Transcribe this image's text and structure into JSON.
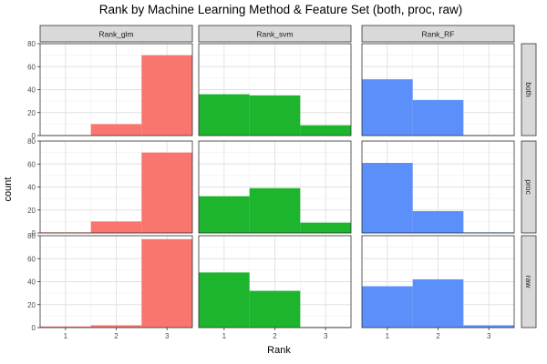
{
  "chart_data": {
    "type": "bar",
    "title": "Rank by Machine Learning Method & Feature Set (both, proc, raw)",
    "xlabel": "Rank",
    "ylabel": "count",
    "x_ticks": [
      "1",
      "2",
      "3"
    ],
    "y_ticks": [
      "0",
      "20",
      "40",
      "60",
      "80"
    ],
    "xlim": [
      0.5,
      3.5
    ],
    "ylim": [
      0,
      80
    ],
    "grid": true,
    "columns": [
      "Rank_glm",
      "Rank_svm",
      "Rank_RF"
    ],
    "rows": [
      "both",
      "proc",
      "raw"
    ],
    "colors": {
      "Rank_glm": "#F8766D",
      "Rank_svm": "#1DB52E",
      "Rank_RF": "#5B8FF9"
    },
    "panels": [
      {
        "column": "Rank_glm",
        "row": "both",
        "categories": [
          "1",
          "2",
          "3"
        ],
        "values": [
          0.5,
          10,
          70
        ]
      },
      {
        "column": "Rank_svm",
        "row": "both",
        "categories": [
          "1",
          "2",
          "3"
        ],
        "values": [
          36,
          35,
          9
        ]
      },
      {
        "column": "Rank_RF",
        "row": "both",
        "categories": [
          "1",
          "2",
          "3"
        ],
        "values": [
          49,
          31,
          0.5
        ]
      },
      {
        "column": "Rank_glm",
        "row": "proc",
        "categories": [
          "1",
          "2",
          "3"
        ],
        "values": [
          0.5,
          10,
          70
        ]
      },
      {
        "column": "Rank_svm",
        "row": "proc",
        "categories": [
          "1",
          "2",
          "3"
        ],
        "values": [
          32,
          39,
          9
        ]
      },
      {
        "column": "Rank_RF",
        "row": "proc",
        "categories": [
          "1",
          "2",
          "3"
        ],
        "values": [
          61,
          19,
          0.5
        ]
      },
      {
        "column": "Rank_glm",
        "row": "raw",
        "categories": [
          "1",
          "2",
          "3"
        ],
        "values": [
          1,
          2,
          77
        ]
      },
      {
        "column": "Rank_svm",
        "row": "raw",
        "categories": [
          "1",
          "2",
          "3"
        ],
        "values": [
          48,
          32,
          0.5
        ]
      },
      {
        "column": "Rank_RF",
        "row": "raw",
        "categories": [
          "1",
          "2",
          "3"
        ],
        "values": [
          36,
          42,
          2
        ]
      }
    ]
  }
}
